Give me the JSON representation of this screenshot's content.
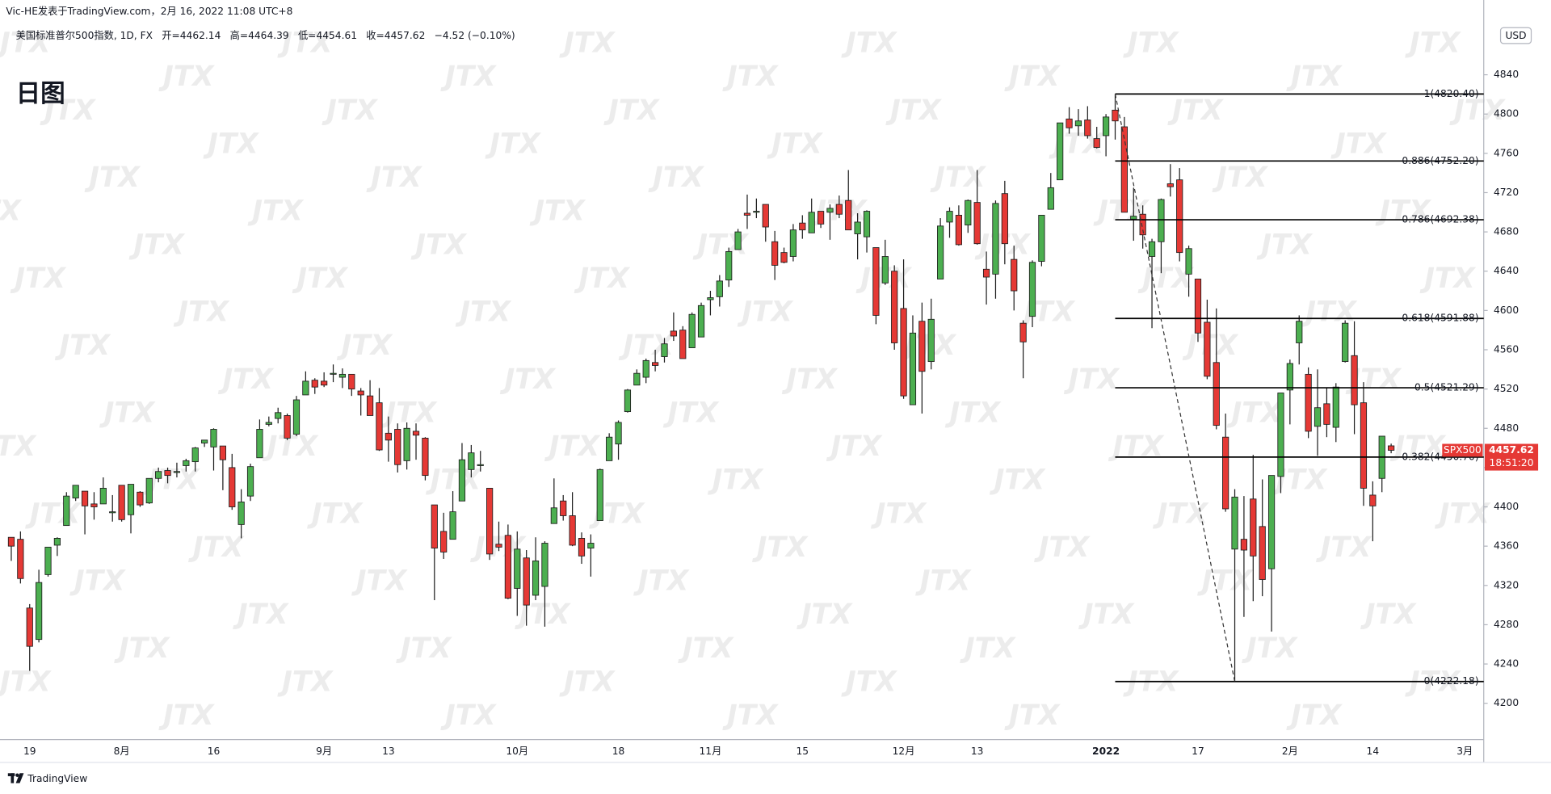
{
  "header": {
    "published": "Vic-HE发表于TradingView.com，2月 16, 2022 11:08 UTC+8",
    "symbol": "美国标准普尔500指数, 1D, FX",
    "ohlc_labels": [
      "开=",
      "高=",
      "低=",
      "收="
    ],
    "change": "−4.52 (−0.10%)"
  },
  "footer": {
    "brand": "TradingView"
  },
  "chart_data": {
    "type": "candlestick",
    "annotations": [
      "日图"
    ],
    "watermark": "JTX",
    "currency": "USD",
    "price_tag": {
      "symbol": "SPX500",
      "countdown": "18:51:20"
    },
    "up_color": "#4caf50",
    "down_color": "#e53935",
    "grid": false,
    "ylim": [
      4163,
      4896
    ],
    "yticks": [
      4200,
      4240,
      4280,
      4320,
      4360,
      4400,
      4440,
      4480,
      4520,
      4560,
      4600,
      4640,
      4680,
      4720,
      4760,
      4800,
      4840
    ],
    "categories": [
      null,
      null,
      "19",
      null,
      null,
      null,
      null,
      null,
      null,
      null,
      null,
      null,
      "8月",
      null,
      null,
      null,
      null,
      null,
      null,
      null,
      null,
      null,
      "16",
      null,
      null,
      null,
      null,
      null,
      null,
      null,
      null,
      null,
      null,
      null,
      "9月",
      null,
      null,
      null,
      null,
      null,
      null,
      "13",
      null,
      null,
      null,
      null,
      null,
      null,
      null,
      null,
      null,
      null,
      null,
      null,
      null,
      "10月",
      null,
      null,
      null,
      null,
      null,
      null,
      null,
      null,
      null,
      null,
      "18",
      null,
      null,
      null,
      null,
      null,
      null,
      null,
      null,
      null,
      "11月",
      null,
      null,
      null,
      null,
      null,
      null,
      null,
      null,
      null,
      "15",
      null,
      null,
      null,
      null,
      null,
      null,
      null,
      null,
      null,
      null,
      "12月",
      null,
      null,
      null,
      null,
      null,
      null,
      null,
      "13",
      null,
      null,
      null,
      null,
      null,
      null,
      null,
      null,
      null,
      null,
      null,
      null,
      null,
      "2022",
      null,
      null,
      null,
      null,
      null,
      null,
      null,
      null,
      null,
      "17",
      null,
      null,
      null,
      null,
      null,
      null,
      null,
      null,
      null,
      "2月",
      null,
      null,
      null,
      null,
      null,
      null,
      null,
      null,
      "14",
      null,
      null,
      null,
      null,
      null,
      null,
      null,
      null,
      null,
      "3月"
    ],
    "open": [
      4369,
      4367,
      4297,
      4265,
      4331,
      4361,
      4381,
      4409,
      4416,
      4403,
      4403,
      4395,
      4422,
      4392,
      4415,
      4404,
      4429,
      4437,
      4435,
      4442,
      4446,
      4465,
      4461,
      4462,
      4440,
      4382,
      4411,
      4450,
      4484,
      4490,
      4493,
      4474,
      4514,
      4529,
      4528,
      4535,
      4532,
      4535,
      4518,
      4513,
      4506,
      4475,
      4479,
      4447,
      4477,
      4470,
      4402,
      4375,
      4367,
      4406,
      4438,
      4442,
      4419,
      4362,
      4371,
      4317,
      4348,
      4310,
      4319,
      4383,
      4406,
      4391,
      4368,
      4358,
      4386,
      4447,
      4464,
      4497,
      4524,
      4532,
      4547,
      4553,
      4579,
      4580,
      4562,
      4573,
      4611,
      4614,
      4631,
      4662,
      4699,
      4701,
      4708,
      4670,
      4659,
      4655,
      4689,
      4679,
      4701,
      4700,
      4708,
      4712,
      4678,
      4675,
      4664,
      4628,
      4640,
      4602,
      4504,
      4589,
      4548,
      4632,
      4690,
      4697,
      4687,
      4710,
      4642,
      4637,
      4719,
      4652,
      4587,
      4594,
      4650,
      4703,
      4733,
      4795,
      4788,
      4794,
      4775,
      4778,
      4804,
      4787,
      4693,
      4698,
      4655,
      4670,
      4729,
      4733,
      4637,
      4632,
      4588,
      4547,
      4471,
      4357,
      4367,
      4408,
      4380,
      4337,
      4431,
      4519,
      4567,
      4535,
      4482,
      4505,
      4481,
      4548,
      4554,
      4506,
      4412,
      4429,
      4462.14,
      null,
      null,
      null,
      null,
      null,
      null,
      null,
      null
    ],
    "high": [
      4369,
      4375,
      4301,
      4336,
      4359,
      4369,
      4415,
      4422,
      4416,
      4415,
      4430,
      4412,
      4422,
      4423,
      4416,
      4429,
      4440,
      4440,
      4445,
      4449,
      4461,
      4468,
      4480,
      4462,
      4454,
      4418,
      4444,
      4489,
      4492,
      4501,
      4495,
      4513,
      4538,
      4531,
      4537,
      4545,
      4541,
      4535,
      4521,
      4529,
      4521,
      4492,
      4485,
      4486,
      4485,
      4471,
      4402,
      4394,
      4416,
      4465,
      4463,
      4457,
      4419,
      4385,
      4382,
      4375,
      4356,
      4369,
      4365,
      4429,
      4412,
      4415,
      4374,
      4372,
      4439,
      4475,
      4488,
      4520,
      4540,
      4551,
      4560,
      4572,
      4598,
      4584,
      4598,
      4608,
      4620,
      4636,
      4664,
      4683,
      4718,
      4714,
      4708,
      4681,
      4664,
      4688,
      4697,
      4714,
      4701,
      4708,
      4717,
      4743,
      4699,
      4702,
      4664,
      4672,
      4646,
      4652,
      4595,
      4608,
      4612,
      4694,
      4705,
      4707,
      4713,
      4743,
      4660,
      4712,
      4732,
      4666,
      4590,
      4651,
      4697,
      4740,
      4791,
      4807,
      4805,
      4808,
      4787,
      4800,
      4820.4,
      4797,
      4725,
      4707,
      4673,
      4714,
      4749,
      4745,
      4666,
      4632,
      4611,
      4602,
      4495,
      4418,
      4411,
      4453,
      4428,
      4432,
      4516,
      4550,
      4595,
      4542,
      4540,
      4521,
      4526,
      4590,
      4589,
      4527,
      4426,
      4472,
      4464.39,
      null,
      null,
      null,
      null,
      null,
      null,
      null,
      null
    ],
    "low": [
      4345,
      4322,
      4233,
      4262,
      4329,
      4350,
      4381,
      4406,
      4372,
      4387,
      4403,
      4385,
      4385,
      4373,
      4400,
      4403,
      4425,
      4424,
      4430,
      4436,
      4436,
      4461,
      4437,
      4417,
      4397,
      4368,
      4406,
      4450,
      4482,
      4485,
      4468,
      4472,
      4514,
      4515,
      4522,
      4527,
      4521,
      4513,
      4493,
      4493,
      4457,
      4446,
      4435,
      4438,
      4448,
      4427,
      4305,
      4347,
      4367,
      4406,
      4430,
      4436,
      4346,
      4355,
      4306,
      4289,
      4279,
      4305,
      4278,
      4383,
      4386,
      4360,
      4342,
      4329,
      4386,
      4447,
      4448,
      4496,
      4524,
      4526,
      4538,
      4547,
      4569,
      4551,
      4562,
      4573,
      4595,
      4604,
      4624,
      4662,
      4683,
      4694,
      4670,
      4631,
      4648,
      4650,
      4673,
      4679,
      4684,
      4672,
      4694,
      4682,
      4652,
      4659,
      4586,
      4626,
      4560,
      4510,
      4504,
      4495,
      4540,
      4632,
      4674,
      4666,
      4679,
      4667,
      4606,
      4612,
      4647,
      4600,
      4531,
      4583,
      4645,
      4703,
      4733,
      4780,
      4778,
      4775,
      4765,
      4757,
      4774,
      4700,
      4671,
      4663,
      4582,
      4638,
      4716,
      4650,
      4614,
      4568,
      4530,
      4479,
      4395,
      4222.18,
      4288,
      4304,
      4309,
      4273,
      4414,
      4484,
      4545,
      4470,
      4452,
      4471,
      4466,
      4547,
      4474,
      4401,
      4365,
      4415,
      4454.61,
      null,
      null,
      null,
      null,
      null,
      null,
      null,
      null
    ],
    "close": [
      4360,
      4327,
      4258,
      4323,
      4359,
      4368,
      4411,
      4422,
      4401,
      4400,
      4419,
      4395,
      4387,
      4423,
      4402,
      4429,
      4436,
      4432,
      4436,
      4447,
      4460,
      4468,
      4479,
      4448,
      4400,
      4405,
      4441,
      4479,
      4486,
      4496,
      4470,
      4509,
      4528,
      4522,
      4524,
      4536,
      4535,
      4520,
      4514,
      4493,
      4458,
      4468,
      4443,
      4480,
      4473,
      4432,
      4358,
      4354,
      4395,
      4448,
      4455,
      4443,
      4352,
      4359,
      4307,
      4357,
      4300,
      4345,
      4363,
      4399,
      4391,
      4361,
      4350,
      4363,
      4438,
      4471,
      4486,
      4519,
      4536,
      4549,
      4544,
      4566,
      4574,
      4551,
      4596,
      4605,
      4613,
      4630,
      4660,
      4680,
      4697,
      4701,
      4685,
      4646,
      4649,
      4682,
      4682,
      4700,
      4688,
      4704,
      4698,
      4682,
      4690,
      4701,
      4595,
      4655,
      4567,
      4513,
      4577,
      4538,
      4591,
      4686,
      4701,
      4667,
      4712,
      4668,
      4634,
      4709,
      4668,
      4620,
      4568,
      4649,
      4697,
      4725,
      4791,
      4786,
      4793,
      4778,
      4766,
      4797,
      4793,
      4700,
      4696,
      4677,
      4670,
      4713,
      4726,
      4659,
      4663,
      4577,
      4533,
      4483,
      4398,
      4410,
      4356,
      4350,
      4326,
      4432,
      4516,
      4546,
      4589,
      4477,
      4501,
      4484,
      4522,
      4587,
      4504,
      4419,
      4401,
      4472,
      4457.62,
      null,
      null,
      null,
      null,
      null,
      null,
      null,
      null
    ],
    "fib": {
      "anchor_x": [
        120,
        133
      ],
      "levels": [
        {
          "price": 4820.4,
          "label": "1(4820.40)"
        },
        {
          "price": 4752.2,
          "label": "0.886(4752.20)"
        },
        {
          "price": 4692.38,
          "label": "0.786(4692.38)"
        },
        {
          "price": 4591.88,
          "label": "0.618(4591.88)"
        },
        {
          "price": 4521.29,
          "label": "0.5(4521.29)"
        },
        {
          "price": 4450.7,
          "label": "0.382(4450.70)"
        },
        {
          "price": 4222.18,
          "label": "0(4222.18)"
        }
      ]
    }
  }
}
